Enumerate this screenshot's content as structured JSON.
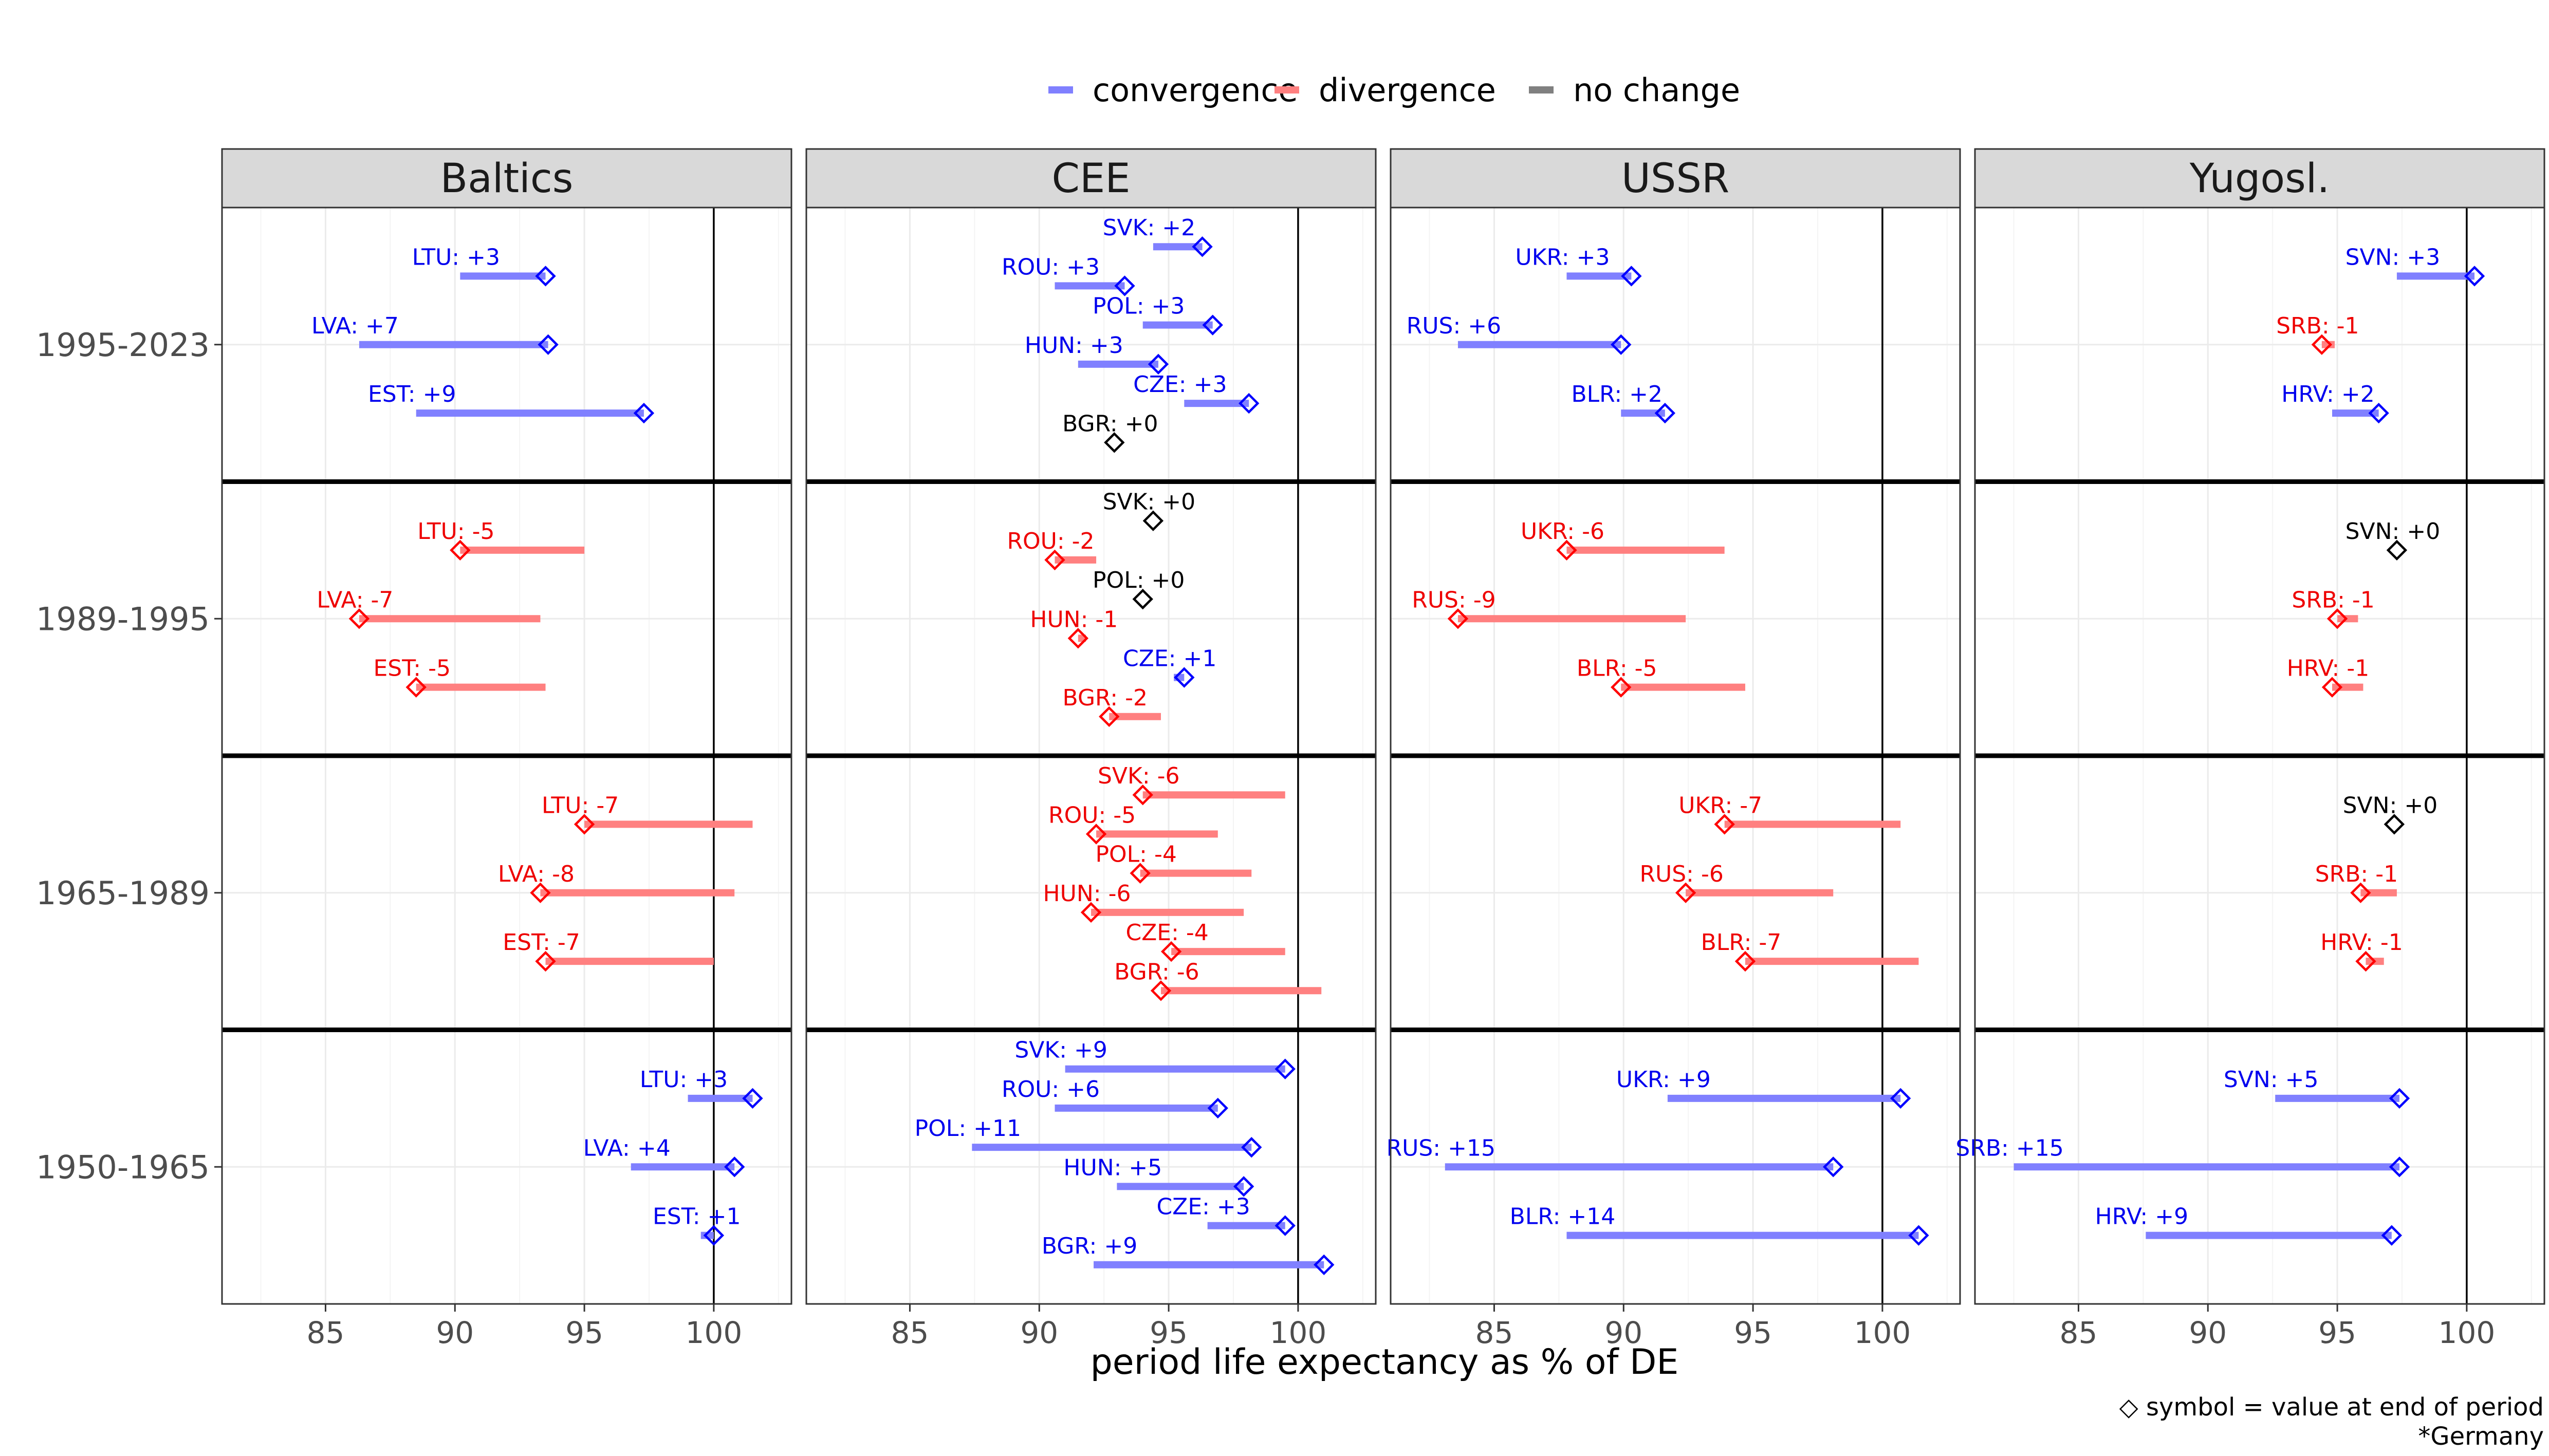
{
  "chart_data": {
    "type": "dumbbell",
    "xlabel": "period life expectancy as % of DE",
    "xlim": [
      81,
      103
    ],
    "xticks": [
      85,
      90,
      95,
      100
    ],
    "reference_value": 100,
    "caption": [
      "◇ symbol = value at end of period",
      "*Germany"
    ],
    "legend": [
      {
        "key": "convergence",
        "label": "convergence",
        "color": "#8080ff"
      },
      {
        "key": "divergence",
        "label": "divergence",
        "color": "#ff8080"
      },
      {
        "key": "nochange",
        "label": "no change",
        "color": "#808080"
      }
    ],
    "text_colors": {
      "convergence": "#0000ee",
      "divergence": "#ee0000",
      "nochange": "#000000"
    },
    "marker_colors": {
      "convergence": "#0000ff",
      "divergence": "#ff0000",
      "nochange": "#000000"
    },
    "periods": [
      "1995-2023",
      "1989-1995",
      "1965-1989",
      "1950-1965"
    ],
    "panels": [
      {
        "name": "Baltics",
        "rows": [
          {
            "period": "1995-2023",
            "items": [
              {
                "code": "LTU",
                "label": "LTU: +3",
                "start": 90.2,
                "end": 93.5,
                "type": "convergence"
              },
              {
                "code": "LVA",
                "label": "LVA: +7",
                "start": 86.3,
                "end": 93.6,
                "type": "convergence"
              },
              {
                "code": "EST",
                "label": "EST: +9",
                "start": 88.5,
                "end": 97.3,
                "type": "convergence"
              }
            ]
          },
          {
            "period": "1989-1995",
            "items": [
              {
                "code": "LTU",
                "label": "LTU: -5",
                "start": 95.0,
                "end": 90.2,
                "type": "divergence"
              },
              {
                "code": "LVA",
                "label": "LVA: -7",
                "start": 93.3,
                "end": 86.3,
                "type": "divergence"
              },
              {
                "code": "EST",
                "label": "EST: -5",
                "start": 93.5,
                "end": 88.5,
                "type": "divergence"
              }
            ]
          },
          {
            "period": "1965-1989",
            "items": [
              {
                "code": "LTU",
                "label": "LTU: -7",
                "start": 101.5,
                "end": 95.0,
                "type": "divergence"
              },
              {
                "code": "LVA",
                "label": "LVA: -8",
                "start": 100.8,
                "end": 93.3,
                "type": "divergence"
              },
              {
                "code": "EST",
                "label": "EST: -7",
                "start": 100.0,
                "end": 93.5,
                "type": "divergence"
              }
            ]
          },
          {
            "period": "1950-1965",
            "items": [
              {
                "code": "LTU",
                "label": "LTU: +3",
                "start": 99.0,
                "end": 101.5,
                "type": "convergence"
              },
              {
                "code": "LVA",
                "label": "LVA: +4",
                "start": 96.8,
                "end": 100.8,
                "type": "convergence"
              },
              {
                "code": "EST",
                "label": "EST: +1",
                "start": 99.5,
                "end": 100.0,
                "type": "convergence"
              }
            ]
          }
        ]
      },
      {
        "name": "CEE",
        "rows": [
          {
            "period": "1995-2023",
            "items": [
              {
                "code": "SVK",
                "label": "SVK: +2",
                "start": 94.4,
                "end": 96.3,
                "type": "convergence"
              },
              {
                "code": "ROU",
                "label": "ROU: +3",
                "start": 90.6,
                "end": 93.3,
                "type": "convergence"
              },
              {
                "code": "POL",
                "label": "POL: +3",
                "start": 94.0,
                "end": 96.7,
                "type": "convergence"
              },
              {
                "code": "HUN",
                "label": "HUN: +3",
                "start": 91.5,
                "end": 94.6,
                "type": "convergence"
              },
              {
                "code": "CZE",
                "label": "CZE: +3",
                "start": 95.6,
                "end": 98.1,
                "type": "convergence"
              },
              {
                "code": "BGR",
                "label": "BGR: +0",
                "start": 92.9,
                "end": 92.9,
                "type": "nochange"
              }
            ]
          },
          {
            "period": "1989-1995",
            "items": [
              {
                "code": "SVK",
                "label": "SVK: +0",
                "start": 94.4,
                "end": 94.4,
                "type": "nochange"
              },
              {
                "code": "ROU",
                "label": "ROU: -2",
                "start": 92.2,
                "end": 90.6,
                "type": "divergence"
              },
              {
                "code": "POL",
                "label": "POL: +0",
                "start": 94.0,
                "end": 94.0,
                "type": "nochange"
              },
              {
                "code": "HUN",
                "label": "HUN: -1",
                "start": 91.8,
                "end": 91.5,
                "type": "divergence"
              },
              {
                "code": "CZE",
                "label": "CZE: +1",
                "start": 95.2,
                "end": 95.6,
                "type": "convergence"
              },
              {
                "code": "BGR",
                "label": "BGR: -2",
                "start": 94.7,
                "end": 92.7,
                "type": "divergence"
              }
            ]
          },
          {
            "period": "1965-1989",
            "items": [
              {
                "code": "SVK",
                "label": "SVK: -6",
                "start": 99.5,
                "end": 94.0,
                "type": "divergence"
              },
              {
                "code": "ROU",
                "label": "ROU: -5",
                "start": 96.9,
                "end": 92.2,
                "type": "divergence"
              },
              {
                "code": "POL",
                "label": "POL: -4",
                "start": 98.2,
                "end": 93.9,
                "type": "divergence"
              },
              {
                "code": "HUN",
                "label": "HUN: -6",
                "start": 97.9,
                "end": 92.0,
                "type": "divergence"
              },
              {
                "code": "CZE",
                "label": "CZE: -4",
                "start": 99.5,
                "end": 95.1,
                "type": "divergence"
              },
              {
                "code": "BGR",
                "label": "BGR: -6",
                "start": 100.9,
                "end": 94.7,
                "type": "divergence"
              }
            ]
          },
          {
            "period": "1950-1965",
            "items": [
              {
                "code": "SVK",
                "label": "SVK: +9",
                "start": 91.0,
                "end": 99.5,
                "type": "convergence"
              },
              {
                "code": "ROU",
                "label": "ROU: +6",
                "start": 90.6,
                "end": 96.9,
                "type": "convergence"
              },
              {
                "code": "POL",
                "label": "POL: +11",
                "start": 87.4,
                "end": 98.2,
                "type": "convergence"
              },
              {
                "code": "HUN",
                "label": "HUN: +5",
                "start": 93.0,
                "end": 97.9,
                "type": "convergence"
              },
              {
                "code": "CZE",
                "label": "CZE: +3",
                "start": 96.5,
                "end": 99.5,
                "type": "convergence"
              },
              {
                "code": "BGR",
                "label": "BGR: +9",
                "start": 92.1,
                "end": 101.0,
                "type": "convergence"
              }
            ]
          }
        ]
      },
      {
        "name": "USSR",
        "rows": [
          {
            "period": "1995-2023",
            "items": [
              {
                "code": "UKR",
                "label": "UKR: +3",
                "start": 87.8,
                "end": 90.3,
                "type": "convergence"
              },
              {
                "code": "RUS",
                "label": "RUS: +6",
                "start": 83.6,
                "end": 89.9,
                "type": "convergence"
              },
              {
                "code": "BLR",
                "label": "BLR: +2",
                "start": 89.9,
                "end": 91.6,
                "type": "convergence"
              }
            ]
          },
          {
            "period": "1989-1995",
            "items": [
              {
                "code": "UKR",
                "label": "UKR: -6",
                "start": 93.9,
                "end": 87.8,
                "type": "divergence"
              },
              {
                "code": "RUS",
                "label": "RUS: -9",
                "start": 92.4,
                "end": 83.6,
                "type": "divergence"
              },
              {
                "code": "BLR",
                "label": "BLR: -5",
                "start": 94.7,
                "end": 89.9,
                "type": "divergence"
              }
            ]
          },
          {
            "period": "1965-1989",
            "items": [
              {
                "code": "UKR",
                "label": "UKR: -7",
                "start": 100.7,
                "end": 93.9,
                "type": "divergence"
              },
              {
                "code": "RUS",
                "label": "RUS: -6",
                "start": 98.1,
                "end": 92.4,
                "type": "divergence"
              },
              {
                "code": "BLR",
                "label": "BLR: -7",
                "start": 101.4,
                "end": 94.7,
                "type": "divergence"
              }
            ]
          },
          {
            "period": "1950-1965",
            "items": [
              {
                "code": "UKR",
                "label": "UKR: +9",
                "start": 91.7,
                "end": 100.7,
                "type": "convergence"
              },
              {
                "code": "RUS",
                "label": "RUS: +15",
                "start": 83.1,
                "end": 98.1,
                "type": "convergence"
              },
              {
                "code": "BLR",
                "label": "BLR: +14",
                "start": 87.8,
                "end": 101.4,
                "type": "convergence"
              }
            ]
          }
        ]
      },
      {
        "name": "Yugosl.",
        "rows": [
          {
            "period": "1995-2023",
            "items": [
              {
                "code": "SVN",
                "label": "SVN: +3",
                "start": 97.3,
                "end": 100.3,
                "type": "convergence"
              },
              {
                "code": "SRB",
                "label": "SRB: -1",
                "start": 94.9,
                "end": 94.4,
                "type": "divergence"
              },
              {
                "code": "HRV",
                "label": "HRV: +2",
                "start": 94.8,
                "end": 96.6,
                "type": "convergence"
              }
            ]
          },
          {
            "period": "1989-1995",
            "items": [
              {
                "code": "SVN",
                "label": "SVN: +0",
                "start": 97.3,
                "end": 97.3,
                "type": "nochange"
              },
              {
                "code": "SRB",
                "label": "SRB: -1",
                "start": 95.8,
                "end": 95.0,
                "type": "divergence"
              },
              {
                "code": "HRV",
                "label": "HRV: -1",
                "start": 96.0,
                "end": 94.8,
                "type": "divergence"
              }
            ]
          },
          {
            "period": "1965-1989",
            "items": [
              {
                "code": "SVN",
                "label": "SVN: +0",
                "start": 97.2,
                "end": 97.2,
                "type": "nochange"
              },
              {
                "code": "SRB",
                "label": "SRB: -1",
                "start": 97.3,
                "end": 95.9,
                "type": "divergence"
              },
              {
                "code": "HRV",
                "label": "HRV: -1",
                "start": 96.8,
                "end": 96.1,
                "type": "divergence"
              }
            ]
          },
          {
            "period": "1950-1965",
            "items": [
              {
                "code": "SVN",
                "label": "SVN: +5",
                "start": 92.6,
                "end": 97.4,
                "type": "convergence"
              },
              {
                "code": "SRB",
                "label": "SRB: +15",
                "start": 82.5,
                "end": 97.4,
                "type": "convergence"
              },
              {
                "code": "HRV",
                "label": "HRV: +9",
                "start": 87.6,
                "end": 97.1,
                "type": "convergence"
              }
            ]
          }
        ]
      }
    ]
  }
}
